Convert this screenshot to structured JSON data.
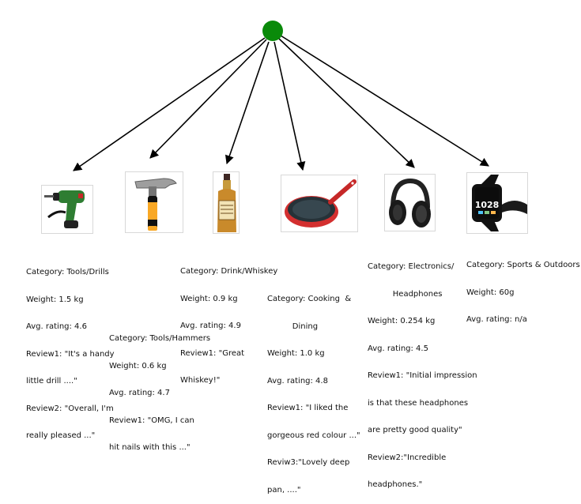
{
  "root": {
    "color": "#0a8a0a"
  },
  "products": [
    {
      "id": "drill",
      "icon": "drill-icon",
      "lines": [
        "Category: Tools/Drills",
        "Weight: 1.5 kg",
        "Avg. rating: 4.6",
        "Review1: \"It's a handy",
        "little drill ....\"",
        "Review2: \"Overall, I'm",
        "really pleased ...\""
      ]
    },
    {
      "id": "hammer",
      "icon": "hammer-icon",
      "lines": [
        "Category: Tools/Hammers",
        "Weight: 0.6 kg",
        "Avg. rating: 4.7",
        "Review1: \"OMG, I can",
        "hit nails with this ...\""
      ]
    },
    {
      "id": "whiskey",
      "icon": "whiskey-bottle-icon",
      "lines": [
        "Category: Drink/Whiskey",
        "Weight: 0.9 kg",
        "Avg. rating: 4.9",
        "Review1: \"Great",
        "Whiskey!\""
      ]
    },
    {
      "id": "pan",
      "icon": "frying-pan-icon",
      "lines": [
        "Category: Cooking  &",
        "          Dining",
        "Weight: 1.0 kg",
        "Avg. rating: 4.8",
        "Review1: \"I liked the",
        "gorgeous red colour ...\"",
        "Reviw3:\"Lovely deep",
        "pan, ....\""
      ]
    },
    {
      "id": "headphones",
      "icon": "headphones-icon",
      "lines": [
        "Category: Electronics/",
        "          Headphones",
        "Weight: 0.254 kg",
        "Avg. rating: 4.5",
        "Review1: \"Initial impression",
        "is that these headphones",
        "are pretty good quality\"",
        "Review2:\"Incredible",
        "headphones.\""
      ]
    },
    {
      "id": "smartwatch",
      "icon": "smartwatch-icon",
      "watch_time": "1028",
      "lines": [
        "Category: Sports & Outdoors",
        "Weight: 60g",
        "Avg. rating: n/a"
      ]
    }
  ]
}
